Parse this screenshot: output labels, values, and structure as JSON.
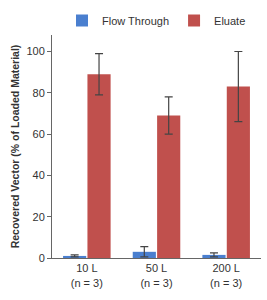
{
  "chart_data": {
    "type": "bar",
    "categories": [
      "10 L (n = 3)",
      "50 L (n = 3)",
      "200 L (n = 3)"
    ],
    "series": [
      {
        "name": "Flow Through",
        "color": "#4a7fcf",
        "values": [
          1,
          3,
          1.5
        ],
        "errors": [
          0.5,
          2.5,
          1
        ]
      },
      {
        "name": "Eluate",
        "color": "#c0504d",
        "values": [
          89,
          69,
          83
        ],
        "errors": [
          10,
          9,
          17
        ]
      }
    ],
    "y_label": "Recovered Vector (% of Loaded Material)",
    "ylim": [
      0,
      108
    ],
    "yticks": [
      0,
      20,
      40,
      60,
      80,
      100
    ],
    "grid": false,
    "legend": "top"
  }
}
